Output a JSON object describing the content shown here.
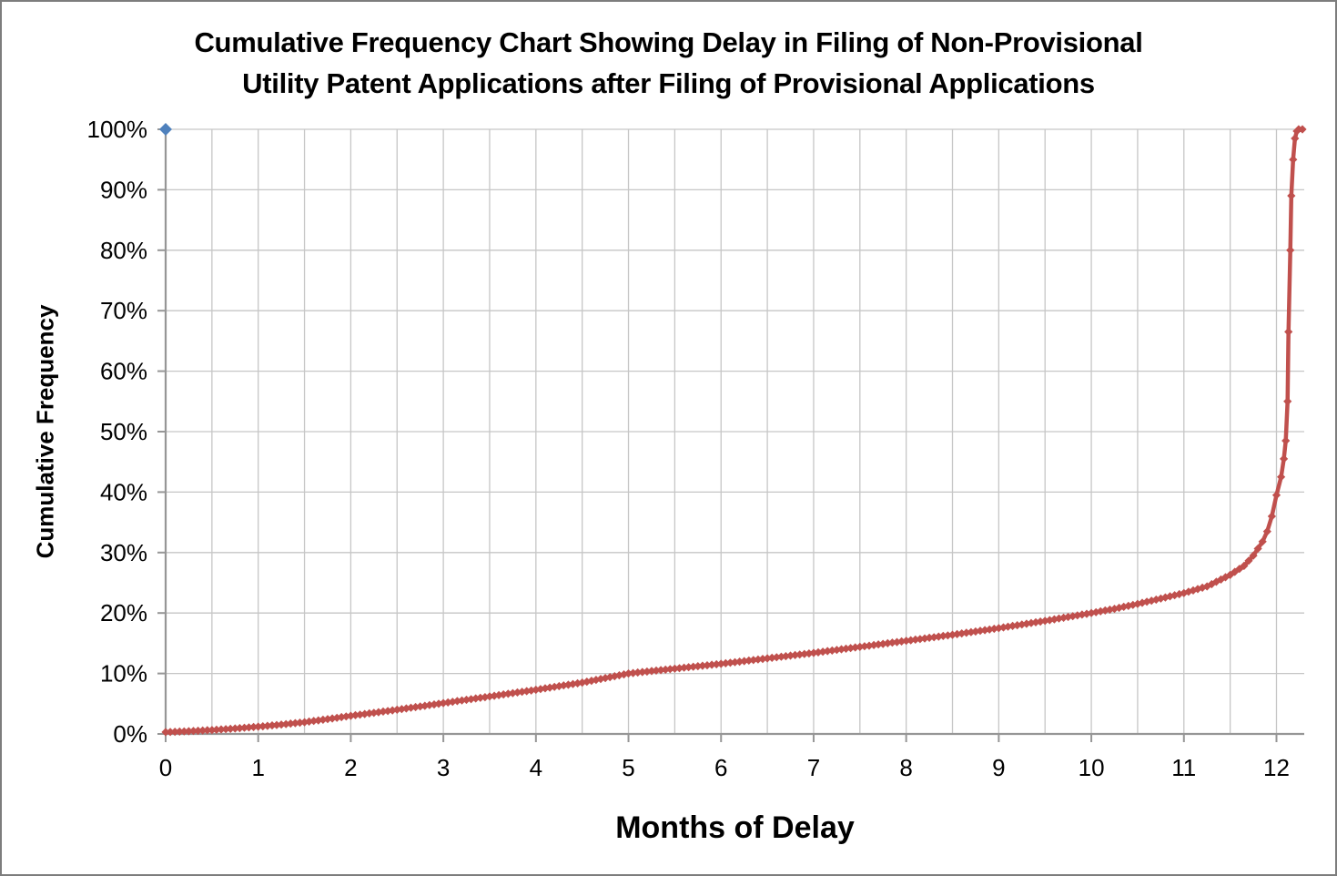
{
  "chart": {
    "title_line1": "Cumulative Frequency Chart Showing Delay in Filing of Non-Provisional",
    "title_line2": "Utility Patent Applications after Filing of Provisional Applications",
    "x_axis_title": "Months of Delay",
    "y_axis_title": "Cumulative Frequency"
  },
  "colors": {
    "series_red": "#C0504D",
    "series_blue": "#4F81BD",
    "gridline": "#C6C6C6",
    "axis_line": "#969696",
    "text": "#000000",
    "background": "#FFFFFF",
    "border": "#7D7D7D"
  },
  "chart_data": {
    "type": "line",
    "title": "Cumulative Frequency Chart Showing Delay in Filing of Non-Provisional Utility Patent Applications after Filing of Provisional Applications",
    "xlabel": "Months of Delay",
    "ylabel": "Cumulative Frequency",
    "xlim": [
      0,
      12.3
    ],
    "ylim": [
      0,
      100
    ],
    "x_tick_values": [
      0,
      1,
      2,
      3,
      4,
      5,
      6,
      7,
      8,
      9,
      10,
      11,
      12
    ],
    "x_tick_labels": [
      "0",
      "1",
      "2",
      "3",
      "4",
      "5",
      "6",
      "7",
      "8",
      "9",
      "10",
      "11",
      "12"
    ],
    "y_tick_values": [
      0,
      10,
      20,
      30,
      40,
      50,
      60,
      70,
      80,
      90,
      100
    ],
    "y_tick_labels": [
      "0%",
      "10%",
      "20%",
      "30%",
      "40%",
      "50%",
      "60%",
      "70%",
      "80%",
      "90%",
      "100%"
    ],
    "x_gridline_step": 0.5,
    "grid": true,
    "legend": "none",
    "series": [
      {
        "name": "blue-point",
        "color": "#4F81BD",
        "marker": "diamond",
        "marker_size": 7,
        "line_width": 0,
        "marker_density_months": 0,
        "points": [
          [
            0,
            100
          ]
        ]
      },
      {
        "name": "cumulative-frequency",
        "color": "#C0504D",
        "marker": "diamond",
        "marker_size": 4.6,
        "line_width": 4.5,
        "marker_density_months": 0.05,
        "points": [
          [
            0,
            0.3
          ],
          [
            0.25,
            0.45
          ],
          [
            0.5,
            0.65
          ],
          [
            0.75,
            0.9
          ],
          [
            1,
            1.2
          ],
          [
            1.25,
            1.55
          ],
          [
            1.5,
            1.95
          ],
          [
            1.75,
            2.45
          ],
          [
            2,
            3.0
          ],
          [
            2.25,
            3.5
          ],
          [
            2.5,
            4.0
          ],
          [
            2.75,
            4.55
          ],
          [
            3,
            5.1
          ],
          [
            3.25,
            5.65
          ],
          [
            3.5,
            6.2
          ],
          [
            3.75,
            6.75
          ],
          [
            4,
            7.3
          ],
          [
            4.25,
            7.9
          ],
          [
            4.5,
            8.5
          ],
          [
            4.75,
            9.25
          ],
          [
            5,
            10.0
          ],
          [
            5.25,
            10.4
          ],
          [
            5.5,
            10.8
          ],
          [
            5.75,
            11.2
          ],
          [
            6,
            11.6
          ],
          [
            6.25,
            12.05
          ],
          [
            6.5,
            12.5
          ],
          [
            6.75,
            12.95
          ],
          [
            7,
            13.4
          ],
          [
            7.25,
            13.9
          ],
          [
            7.5,
            14.4
          ],
          [
            7.75,
            14.9
          ],
          [
            8,
            15.4
          ],
          [
            8.25,
            15.9
          ],
          [
            8.5,
            16.4
          ],
          [
            8.75,
            16.95
          ],
          [
            9,
            17.5
          ],
          [
            9.25,
            18.1
          ],
          [
            9.5,
            18.7
          ],
          [
            9.75,
            19.35
          ],
          [
            10,
            20.0
          ],
          [
            10.25,
            20.7
          ],
          [
            10.5,
            21.5
          ],
          [
            10.75,
            22.4
          ],
          [
            11,
            23.3
          ],
          [
            11.25,
            24.4
          ],
          [
            11.5,
            26.3
          ],
          [
            11.65,
            27.8
          ],
          [
            11.75,
            29.5
          ],
          [
            11.85,
            31.8
          ],
          [
            11.9,
            33.5
          ],
          [
            11.95,
            36.0
          ],
          [
            12.0,
            39.5
          ],
          [
            12.05,
            42.5
          ],
          [
            12.08,
            45.5
          ],
          [
            12.1,
            48.5
          ],
          [
            12.12,
            55.0
          ],
          [
            12.13,
            66.5
          ],
          [
            12.15,
            80.0
          ],
          [
            12.16,
            89.0
          ],
          [
            12.18,
            95.0
          ],
          [
            12.2,
            98.5
          ],
          [
            12.22,
            99.7
          ],
          [
            12.24,
            100
          ],
          [
            12.28,
            100
          ]
        ]
      }
    ]
  }
}
